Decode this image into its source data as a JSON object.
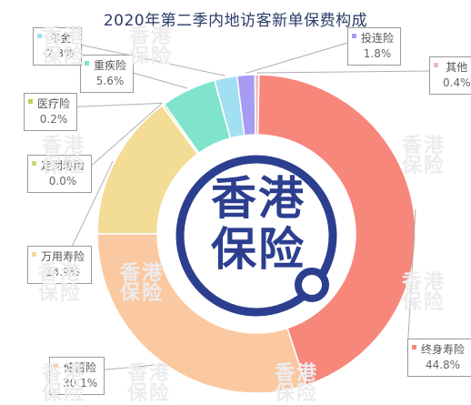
{
  "title": "2020年第二季内地访客新单保费构成",
  "center_logo": {
    "text": "香港保险",
    "color": "#2c3f8f"
  },
  "watermark": "香港保险",
  "chart_data": {
    "type": "pie",
    "title": "2020年第二季内地访客新单保费构成",
    "slices": [
      {
        "name": "终身寿险",
        "value": 44.8,
        "display": "44.8%",
        "color": "#f6877a"
      },
      {
        "name": "储蓄险",
        "value": 30.1,
        "display": "30.1%",
        "color": "#fbc9a1"
      },
      {
        "name": "万用寿险",
        "value": 14.9,
        "display": "14.9%",
        "color": "#f3dc96"
      },
      {
        "name": "定期寿险",
        "value": 0.0,
        "display": "0.0%",
        "color": "#c8dc7a"
      },
      {
        "name": "医疗险",
        "value": 0.2,
        "display": "0.2%",
        "color": "#b5d45e"
      },
      {
        "name": "重疾险",
        "value": 5.6,
        "display": "5.6%",
        "color": "#80e4cc"
      },
      {
        "name": "年金",
        "value": 2.3,
        "display": "2.3%",
        "color": "#a3dff2"
      },
      {
        "name": "投连险",
        "value": 1.8,
        "display": "1.8%",
        "color": "#a79cf3"
      },
      {
        "name": "其他",
        "value": 0.4,
        "display": "0.4%",
        "color": "#f5b6c1"
      }
    ]
  }
}
